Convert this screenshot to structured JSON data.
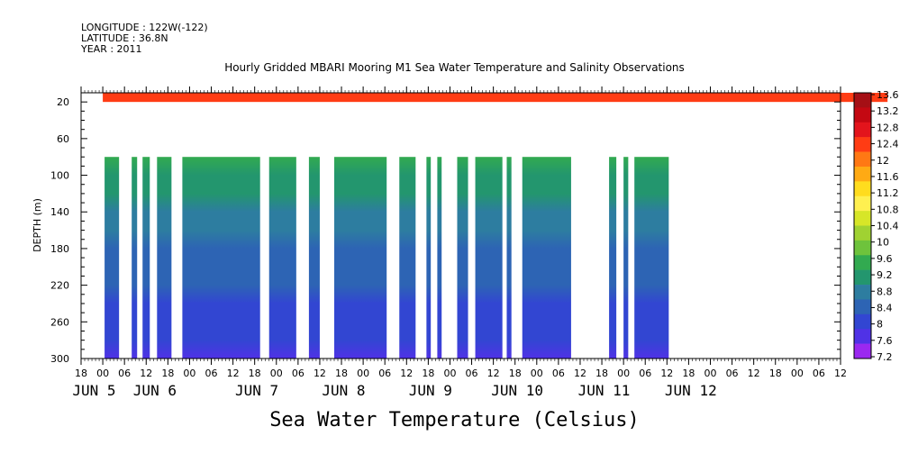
{
  "header": {
    "longitude": "LONGITUDE : 122W(-122)",
    "latitude": "LATITUDE : 36.8N",
    "year": "YEAR : 2011"
  },
  "title": "Hourly Gridded MBARI Mooring M1 Sea Water Temperature and Salinity Observations",
  "variable_label": "Sea Water Temperature (Celsius)",
  "chart_data": {
    "type": "heatmap",
    "title": "Hourly Gridded MBARI Mooring M1 Sea Water Temperature and Salinity Observations",
    "ylabel": "DEPTH (m)",
    "colorbar_label": "Sea Water Temperature (Celsius)",
    "ylim": [
      300,
      10
    ],
    "y_ticks": [
      20,
      60,
      100,
      140,
      180,
      220,
      260,
      300
    ],
    "x_range_hours": [
      -6,
      204
    ],
    "x_hour_ticks": [
      {
        "h": -6,
        "label": "18"
      },
      {
        "h": 0,
        "label": "00"
      },
      {
        "h": 6,
        "label": "06"
      },
      {
        "h": 12,
        "label": "12"
      },
      {
        "h": 18,
        "label": "18"
      },
      {
        "h": 24,
        "label": "00"
      },
      {
        "h": 30,
        "label": "06"
      },
      {
        "h": 36,
        "label": "12"
      },
      {
        "h": 42,
        "label": "18"
      },
      {
        "h": 48,
        "label": "00"
      },
      {
        "h": 54,
        "label": "06"
      },
      {
        "h": 60,
        "label": "12"
      },
      {
        "h": 66,
        "label": "18"
      },
      {
        "h": 72,
        "label": "00"
      },
      {
        "h": 78,
        "label": "06"
      },
      {
        "h": 84,
        "label": "12"
      },
      {
        "h": 90,
        "label": "18"
      },
      {
        "h": 96,
        "label": "00"
      },
      {
        "h": 102,
        "label": "06"
      },
      {
        "h": 108,
        "label": "12"
      },
      {
        "h": 114,
        "label": "18"
      },
      {
        "h": 120,
        "label": "00"
      },
      {
        "h": 126,
        "label": "06"
      },
      {
        "h": 132,
        "label": "12"
      },
      {
        "h": 138,
        "label": "18"
      },
      {
        "h": 144,
        "label": "00"
      },
      {
        "h": 150,
        "label": "06"
      },
      {
        "h": 156,
        "label": "12"
      },
      {
        "h": 162,
        "label": "18"
      },
      {
        "h": 168,
        "label": "00"
      },
      {
        "h": 174,
        "label": "06"
      },
      {
        "h": 180,
        "label": "12"
      },
      {
        "h": 186,
        "label": "18"
      },
      {
        "h": 192,
        "label": "00"
      },
      {
        "h": 198,
        "label": "06"
      },
      {
        "h": 204,
        "label": "12"
      }
    ],
    "date_labels": [
      {
        "h": -2.4,
        "label": "JUN  5"
      },
      {
        "h": 14.4,
        "label": "JUN  6"
      },
      {
        "h": 42.6,
        "label": "JUN  7"
      },
      {
        "h": 66.6,
        "label": "JUN  8"
      },
      {
        "h": 90.6,
        "label": "JUN  9"
      },
      {
        "h": 114.6,
        "label": "JUN 10"
      },
      {
        "h": 138.6,
        "label": "JUN 11"
      },
      {
        "h": 162.6,
        "label": "JUN 12"
      }
    ],
    "surface_layer": {
      "h_start": 0,
      "h_end": 217,
      "depth_top": 10,
      "depth_bottom": 20,
      "value": 12.6
    },
    "deep_segments_depth": [
      80,
      300
    ],
    "deep_segments_hours": [
      [
        0.5,
        4.5
      ],
      [
        8,
        9.5
      ],
      [
        11,
        13
      ],
      [
        15,
        19
      ],
      [
        22,
        43.5
      ],
      [
        46,
        53.5
      ],
      [
        57,
        60
      ],
      [
        64,
        78.5
      ],
      [
        82,
        86.5
      ],
      [
        89.5,
        90.7
      ],
      [
        92.5,
        93.7
      ],
      [
        98,
        101
      ],
      [
        103,
        110.5
      ],
      [
        111.7,
        113
      ],
      [
        116,
        129.5
      ],
      [
        140,
        142
      ],
      [
        144,
        145.3
      ],
      [
        147,
        156.5
      ]
    ],
    "profile": [
      {
        "depth": 80,
        "value": 9.4
      },
      {
        "depth": 100,
        "value": 9.0
      },
      {
        "depth": 120,
        "value": 8.8
      },
      {
        "depth": 140,
        "value": 8.6
      },
      {
        "depth": 160,
        "value": 8.4
      },
      {
        "depth": 180,
        "value": 8.2
      },
      {
        "depth": 200,
        "value": 8.1
      },
      {
        "depth": 220,
        "value": 8.0
      },
      {
        "depth": 240,
        "value": 7.9
      },
      {
        "depth": 260,
        "value": 7.8
      },
      {
        "depth": 280,
        "value": 7.7
      },
      {
        "depth": 300,
        "value": 7.5
      }
    ],
    "colorbar": {
      "levels": [
        "13.6",
        "13.2",
        "12.8",
        "12.4",
        "12",
        "11.6",
        "11.2",
        "10.8",
        "10.4",
        "10",
        "9.6",
        "9.2",
        "8.8",
        "8.4",
        "8",
        "7.6",
        "7.2"
      ],
      "colors": [
        "#a50f15",
        "#c40812",
        "#e3141c",
        "#ff3c14",
        "#ff7814",
        "#ffaa14",
        "#ffdc1e",
        "#fff050",
        "#d7e628",
        "#a0d232",
        "#6ec33c",
        "#32aa50",
        "#23966e",
        "#2d7da0",
        "#2d64b4",
        "#3246d2",
        "#5032e6",
        "#9b28f0"
      ]
    }
  }
}
